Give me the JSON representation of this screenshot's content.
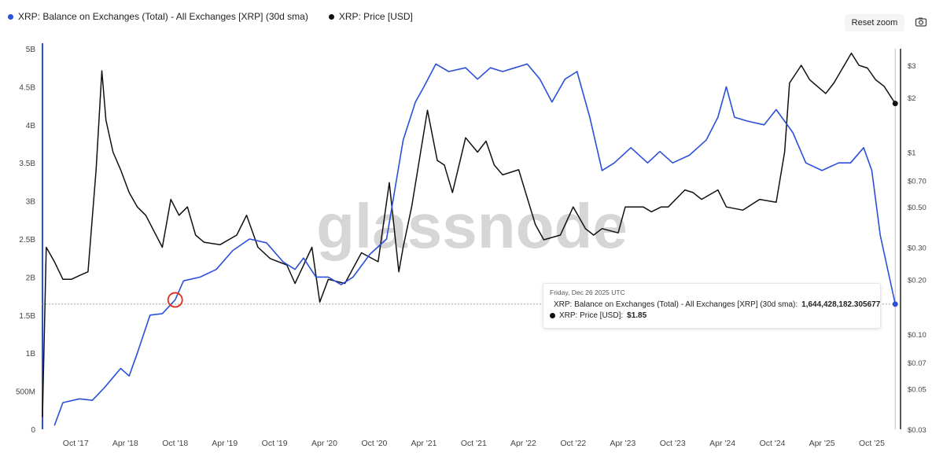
{
  "legend": {
    "series1": "XRP: Balance on Exchanges (Total) - All Exchanges [XRP] (30d sma)",
    "series2": "XRP: Price [USD]"
  },
  "controls": {
    "reset_zoom": "Reset zoom",
    "camera_icon": "camera-icon"
  },
  "watermark": "glassnode",
  "tooltip": {
    "date": "Friday, Dec 26 2025 UTC",
    "series1_label": "XRP: Balance on Exchanges (Total) - All Exchanges [XRP] (30d sma):",
    "series1_value": "1,644,428,182.305677",
    "series2_label": "XRP: Price [USD]:",
    "series2_value": "$1.85"
  },
  "colors": {
    "balance": "#2b4fd8",
    "price": "#111111",
    "highlight": "#e02a1a",
    "axis": "#2b4fd8"
  },
  "chart_data": {
    "type": "line",
    "x_tick_labels": [
      "Oct '17",
      "Apr '18",
      "Oct '18",
      "Apr '19",
      "Oct '19",
      "Apr '20",
      "Oct '20",
      "Apr '21",
      "Oct '21",
      "Apr '22",
      "Oct '22",
      "Apr '23",
      "Oct '23",
      "Apr '24",
      "Oct '24",
      "Apr '25",
      "Oct '25"
    ],
    "x_tick_dates": [
      "2017-10-01",
      "2018-04-01",
      "2018-10-01",
      "2019-04-01",
      "2019-10-01",
      "2020-04-01",
      "2020-10-01",
      "2021-04-01",
      "2021-10-01",
      "2022-04-01",
      "2022-10-01",
      "2023-04-01",
      "2023-10-01",
      "2024-04-01",
      "2024-10-01",
      "2025-04-01",
      "2025-10-01"
    ],
    "x_range": [
      "2017-06-01",
      "2025-12-31"
    ],
    "y_left": {
      "ticks": [
        0,
        500000000,
        1000000000,
        1500000000,
        2000000000,
        2500000000,
        3000000000,
        3500000000,
        4000000000,
        4500000000,
        5000000000
      ],
      "tick_labels": [
        "0",
        "500M",
        "1B",
        "1.5B",
        "2B",
        "2.5B",
        "3B",
        "3.5B",
        "4B",
        "4.5B",
        "5B"
      ],
      "range": [
        0,
        5000000000
      ]
    },
    "y_right": {
      "scale": "log",
      "ticks": [
        0.03,
        0.05,
        0.07,
        0.1,
        0.2,
        0.3,
        0.5,
        0.7,
        1,
        2,
        3
      ],
      "tick_labels": [
        "$0.03",
        "$0.05",
        "$0.07",
        "$0.10",
        "$0.20",
        "$0.30",
        "$0.50",
        "$0.70",
        "$1",
        "$2",
        "$3"
      ],
      "range": [
        0.03,
        3.7
      ]
    },
    "grid": false,
    "legend_position": "top-left",
    "annotation": "red circle on balance line near Oct '18",
    "series": [
      {
        "name": "XRP: Balance on Exchanges (Total) - All Exchanges [XRP] (30d sma)",
        "axis": "left",
        "points": [
          [
            "2017-07-15",
            50000000
          ],
          [
            "2017-08-15",
            350000000
          ],
          [
            "2017-10-15",
            400000000
          ],
          [
            "2017-12-01",
            380000000
          ],
          [
            "2018-01-15",
            550000000
          ],
          [
            "2018-03-15",
            800000000
          ],
          [
            "2018-04-15",
            700000000
          ],
          [
            "2018-05-15",
            1000000000
          ],
          [
            "2018-07-01",
            1500000000
          ],
          [
            "2018-08-15",
            1520000000
          ],
          [
            "2018-10-01",
            1700000000
          ],
          [
            "2018-11-01",
            1950000000
          ],
          [
            "2019-01-01",
            2000000000
          ],
          [
            "2019-03-01",
            2100000000
          ],
          [
            "2019-05-01",
            2350000000
          ],
          [
            "2019-07-01",
            2500000000
          ],
          [
            "2019-09-01",
            2450000000
          ],
          [
            "2019-11-01",
            2200000000
          ],
          [
            "2019-12-15",
            2100000000
          ],
          [
            "2020-01-15",
            2250000000
          ],
          [
            "2020-03-01",
            2000000000
          ],
          [
            "2020-04-15",
            2000000000
          ],
          [
            "2020-06-01",
            1900000000
          ],
          [
            "2020-07-15",
            2000000000
          ],
          [
            "2020-09-15",
            2300000000
          ],
          [
            "2020-11-15",
            2500000000
          ],
          [
            "2021-01-15",
            3800000000
          ],
          [
            "2021-03-01",
            4300000000
          ],
          [
            "2021-04-01",
            4500000000
          ],
          [
            "2021-05-15",
            4800000000
          ],
          [
            "2021-07-01",
            4700000000
          ],
          [
            "2021-09-01",
            4750000000
          ],
          [
            "2021-10-15",
            4600000000
          ],
          [
            "2021-12-01",
            4750000000
          ],
          [
            "2022-01-15",
            4700000000
          ],
          [
            "2022-03-01",
            4750000000
          ],
          [
            "2022-04-15",
            4800000000
          ],
          [
            "2022-06-01",
            4600000000
          ],
          [
            "2022-07-15",
            4300000000
          ],
          [
            "2022-09-01",
            4600000000
          ],
          [
            "2022-10-15",
            4700000000
          ],
          [
            "2022-12-01",
            4100000000
          ],
          [
            "2023-01-15",
            3400000000
          ],
          [
            "2023-03-01",
            3500000000
          ],
          [
            "2023-05-01",
            3700000000
          ],
          [
            "2023-07-01",
            3500000000
          ],
          [
            "2023-08-15",
            3650000000
          ],
          [
            "2023-10-01",
            3500000000
          ],
          [
            "2023-12-01",
            3600000000
          ],
          [
            "2024-02-01",
            3800000000
          ],
          [
            "2024-03-15",
            4100000000
          ],
          [
            "2024-04-15",
            4500000000
          ],
          [
            "2024-05-15",
            4100000000
          ],
          [
            "2024-07-01",
            4050000000
          ],
          [
            "2024-09-01",
            4000000000
          ],
          [
            "2024-10-15",
            4200000000
          ],
          [
            "2024-12-15",
            3900000000
          ],
          [
            "2025-02-01",
            3500000000
          ],
          [
            "2025-04-01",
            3400000000
          ],
          [
            "2025-06-01",
            3500000000
          ],
          [
            "2025-07-15",
            3500000000
          ],
          [
            "2025-09-01",
            3700000000
          ],
          [
            "2025-10-01",
            3400000000
          ],
          [
            "2025-11-01",
            2550000000
          ],
          [
            "2025-12-26",
            1644428182
          ]
        ]
      },
      {
        "name": "XRP: Price [USD]",
        "axis": "right",
        "points": [
          [
            "2017-06-01",
            0.035
          ],
          [
            "2017-06-15",
            0.3
          ],
          [
            "2017-07-15",
            0.25
          ],
          [
            "2017-08-15",
            0.2
          ],
          [
            "2017-09-15",
            0.2
          ],
          [
            "2017-10-15",
            0.21
          ],
          [
            "2017-11-15",
            0.22
          ],
          [
            "2017-12-15",
            0.8
          ],
          [
            "2018-01-05",
            2.8
          ],
          [
            "2018-01-20",
            1.5
          ],
          [
            "2018-02-15",
            1.0
          ],
          [
            "2018-03-15",
            0.8
          ],
          [
            "2018-04-15",
            0.6
          ],
          [
            "2018-05-15",
            0.5
          ],
          [
            "2018-06-15",
            0.45
          ],
          [
            "2018-08-15",
            0.3
          ],
          [
            "2018-09-15",
            0.55
          ],
          [
            "2018-10-15",
            0.45
          ],
          [
            "2018-11-15",
            0.5
          ],
          [
            "2018-12-15",
            0.35
          ],
          [
            "2019-01-15",
            0.32
          ],
          [
            "2019-03-15",
            0.31
          ],
          [
            "2019-05-15",
            0.35
          ],
          [
            "2019-06-20",
            0.45
          ],
          [
            "2019-08-01",
            0.3
          ],
          [
            "2019-09-15",
            0.26
          ],
          [
            "2019-11-15",
            0.24
          ],
          [
            "2019-12-15",
            0.19
          ],
          [
            "2020-02-15",
            0.3
          ],
          [
            "2020-03-15",
            0.15
          ],
          [
            "2020-04-15",
            0.2
          ],
          [
            "2020-06-15",
            0.19
          ],
          [
            "2020-08-15",
            0.28
          ],
          [
            "2020-10-15",
            0.25
          ],
          [
            "2020-11-25",
            0.68
          ],
          [
            "2020-12-30",
            0.22
          ],
          [
            "2021-01-15",
            0.3
          ],
          [
            "2021-02-15",
            0.5
          ],
          [
            "2021-04-14",
            1.7
          ],
          [
            "2021-05-20",
            0.9
          ],
          [
            "2021-06-15",
            0.85
          ],
          [
            "2021-07-15",
            0.6
          ],
          [
            "2021-09-01",
            1.2
          ],
          [
            "2021-10-15",
            1.0
          ],
          [
            "2021-11-15",
            1.15
          ],
          [
            "2021-12-15",
            0.85
          ],
          [
            "2022-01-15",
            0.75
          ],
          [
            "2022-03-15",
            0.8
          ],
          [
            "2022-05-15",
            0.4
          ],
          [
            "2022-06-15",
            0.33
          ],
          [
            "2022-08-15",
            0.35
          ],
          [
            "2022-10-01",
            0.5
          ],
          [
            "2022-11-15",
            0.38
          ],
          [
            "2022-12-15",
            0.35
          ],
          [
            "2023-01-15",
            0.38
          ],
          [
            "2023-03-15",
            0.36
          ],
          [
            "2023-04-10",
            0.5
          ],
          [
            "2023-06-15",
            0.5
          ],
          [
            "2023-07-15",
            0.47
          ],
          [
            "2023-08-20",
            0.5
          ],
          [
            "2023-09-15",
            0.5
          ],
          [
            "2023-11-15",
            0.62
          ],
          [
            "2023-12-15",
            0.6
          ],
          [
            "2024-01-15",
            0.55
          ],
          [
            "2024-03-15",
            0.62
          ],
          [
            "2024-04-15",
            0.5
          ],
          [
            "2024-06-15",
            0.48
          ],
          [
            "2024-08-15",
            0.55
          ],
          [
            "2024-10-15",
            0.53
          ],
          [
            "2024-11-15",
            1.0
          ],
          [
            "2024-12-03",
            2.4
          ],
          [
            "2025-01-15",
            3.0
          ],
          [
            "2025-02-15",
            2.5
          ],
          [
            "2025-03-15",
            2.3
          ],
          [
            "2025-04-15",
            2.1
          ],
          [
            "2025-05-15",
            2.4
          ],
          [
            "2025-07-18",
            3.5
          ],
          [
            "2025-08-15",
            3.0
          ],
          [
            "2025-09-15",
            2.9
          ],
          [
            "2025-10-15",
            2.5
          ],
          [
            "2025-11-15",
            2.3
          ],
          [
            "2025-12-26",
            1.85
          ]
        ]
      }
    ]
  }
}
